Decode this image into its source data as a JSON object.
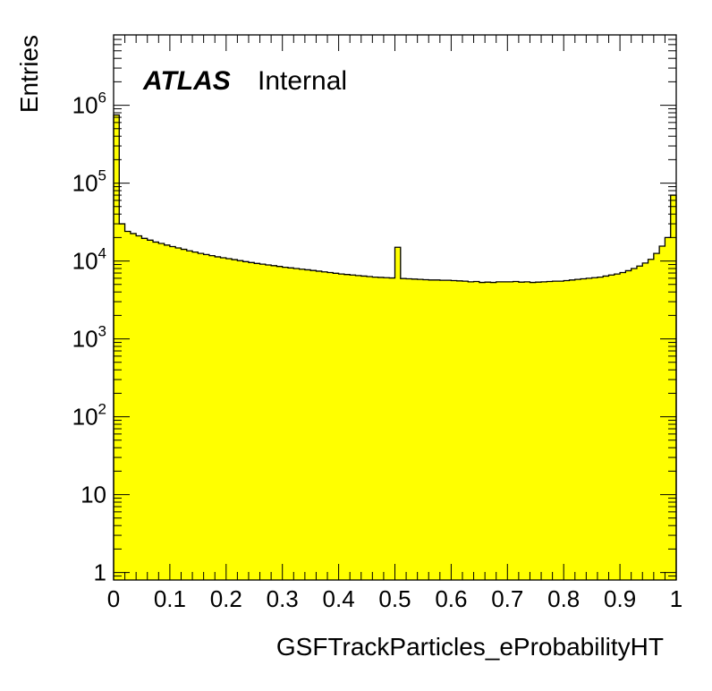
{
  "chart_data": {
    "type": "bar",
    "subtype": "histogram",
    "log_y": true,
    "grid": false,
    "xlabel": "GSFTrackParticles_eProbabilityHT",
    "ylabel": "Entries",
    "xlim": [
      0,
      1
    ],
    "ylim": [
      0.8,
      8000000
    ],
    "x_ticks": [
      "0",
      "0.1",
      "0.2",
      "0.3",
      "0.4",
      "0.5",
      "0.6",
      "0.7",
      "0.8",
      "0.9",
      "1"
    ],
    "y_ticks": [
      {
        "value": 1,
        "base": "1",
        "exp": ""
      },
      {
        "value": 10,
        "base": "10",
        "exp": ""
      },
      {
        "value": 100,
        "base": "10",
        "exp": "2"
      },
      {
        "value": 1000,
        "base": "10",
        "exp": "3"
      },
      {
        "value": 10000,
        "base": "10",
        "exp": "4"
      },
      {
        "value": 100000,
        "base": "10",
        "exp": "5"
      },
      {
        "value": 1000000,
        "base": "10",
        "exp": "6"
      }
    ],
    "annotation": {
      "bold": "ATLAS",
      "normal": "Internal"
    },
    "fill_color": "#ffff00",
    "line_color": "#000000",
    "bin_edges_range": [
      0,
      1
    ],
    "bin_count": 100,
    "values": [
      750000,
      30000,
      24000,
      22500,
      21000,
      19500,
      18500,
      17500,
      16800,
      16000,
      15300,
      14700,
      14100,
      13500,
      13000,
      12500,
      12100,
      11700,
      11300,
      11000,
      10700,
      10400,
      10100,
      9800,
      9550,
      9300,
      9100,
      8900,
      8700,
      8500,
      8300,
      8150,
      8000,
      7850,
      7700,
      7550,
      7400,
      7250,
      7100,
      6950,
      6800,
      6700,
      6600,
      6500,
      6400,
      6300,
      6200,
      6150,
      6100,
      6050,
      15000,
      5950,
      5900,
      5850,
      5800,
      5750,
      5700,
      5700,
      5650,
      5650,
      5600,
      5550,
      5500,
      5400,
      5450,
      5300,
      5350,
      5300,
      5400,
      5400,
      5400,
      5450,
      5350,
      5400,
      5300,
      5350,
      5400,
      5450,
      5500,
      5500,
      5600,
      5700,
      5800,
      5900,
      6000,
      6100,
      6200,
      6400,
      6600,
      6800,
      7100,
      7500,
      8000,
      8600,
      9400,
      10500,
      12500,
      15500,
      20000,
      70000
    ]
  }
}
